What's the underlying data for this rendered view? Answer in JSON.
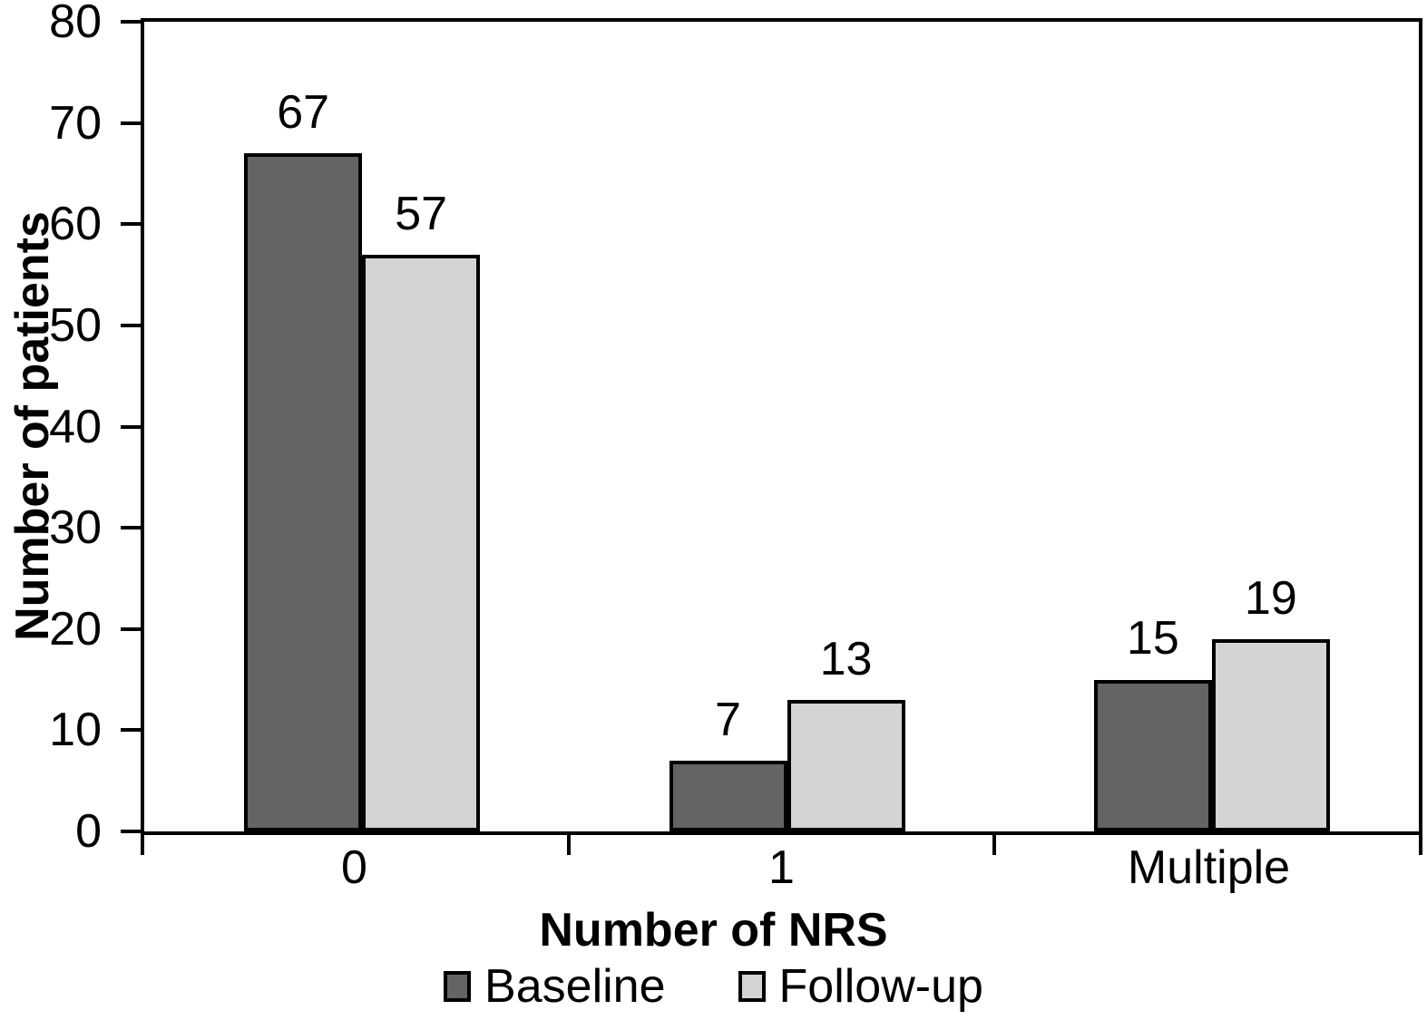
{
  "chart_data": {
    "type": "bar",
    "title": "",
    "categories": [
      "0",
      "1",
      "Multiple"
    ],
    "series": [
      {
        "name": "Baseline",
        "color": "#646464",
        "values": [
          67,
          7,
          15
        ]
      },
      {
        "name": "Follow-up",
        "color": "#d4d4d4",
        "values": [
          57,
          13,
          19
        ]
      }
    ],
    "xlabel": "Number of NRS",
    "ylabel": "Number of patients",
    "ylim": [
      0,
      80
    ],
    "yticks": [
      0,
      10,
      20,
      30,
      40,
      50,
      60,
      70,
      80
    ],
    "grid": false,
    "bar_value_labels": true,
    "legend_position": "bottom",
    "colors": {
      "axis": "#000000",
      "text": "#000000",
      "background": "#ffffff"
    }
  }
}
